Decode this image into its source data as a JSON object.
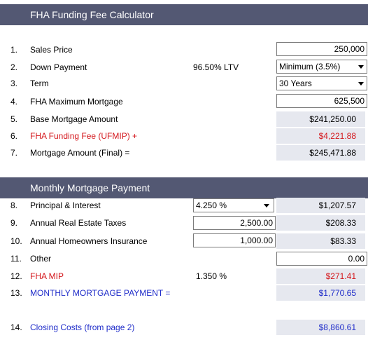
{
  "sections": {
    "funding_fee": {
      "title": "FHA Funding Fee Calculator"
    },
    "monthly": {
      "title": "Monthly Mortgage Payment"
    }
  },
  "rows": {
    "r1": {
      "num": "1.",
      "label": "Sales Price",
      "value": "250,000"
    },
    "r2": {
      "num": "2.",
      "label": "Down Payment",
      "ltv": "96.50% LTV",
      "select_value": "Minimum (3.5%)"
    },
    "r3": {
      "num": "3.",
      "label": "Term",
      "select_value": "30 Years"
    },
    "r4": {
      "num": "4.",
      "label": "FHA Maximum Mortgage",
      "value": "625,500"
    },
    "r5": {
      "num": "5.",
      "label": "Base Mortgage Amount",
      "value": "$241,250.00"
    },
    "r6": {
      "num": "6.",
      "label": "FHA Funding Fee (UFMIP) +",
      "value": "$4,221.88"
    },
    "r7": {
      "num": "7.",
      "label": "Mortgage Amount (Final) =",
      "value": "$245,471.88"
    },
    "r8": {
      "num": "8.",
      "label": "Principal & Interest",
      "rate_select": "4.250 %",
      "value": "$1,207.57"
    },
    "r9": {
      "num": "9.",
      "label": "Annual Real Estate Taxes",
      "input": "2,500.00",
      "value": "$208.33"
    },
    "r10": {
      "num": "10.",
      "label": "Annual Homeowners Insurance",
      "input": "1,000.00",
      "value": "$83.33"
    },
    "r11": {
      "num": "11.",
      "label": "Other",
      "value": "0.00"
    },
    "r12": {
      "num": "12.",
      "label": "FHA MIP",
      "rate": "1.350 %",
      "value": "$271.41"
    },
    "r13": {
      "num": "13.",
      "label": "MONTHLY MORTGAGE PAYMENT =",
      "value": "$1,770.65"
    },
    "r14": {
      "num": "14.",
      "label": "Closing Costs (from page 2)",
      "value": "$8,860.61"
    }
  },
  "colors": {
    "header_bg": "#535873",
    "shade_bg": "#e6e8ef",
    "red_text": "#d4161b",
    "blue_text": "#1f2cc9"
  },
  "icons": {
    "dropdown": "chevron-down-icon"
  }
}
